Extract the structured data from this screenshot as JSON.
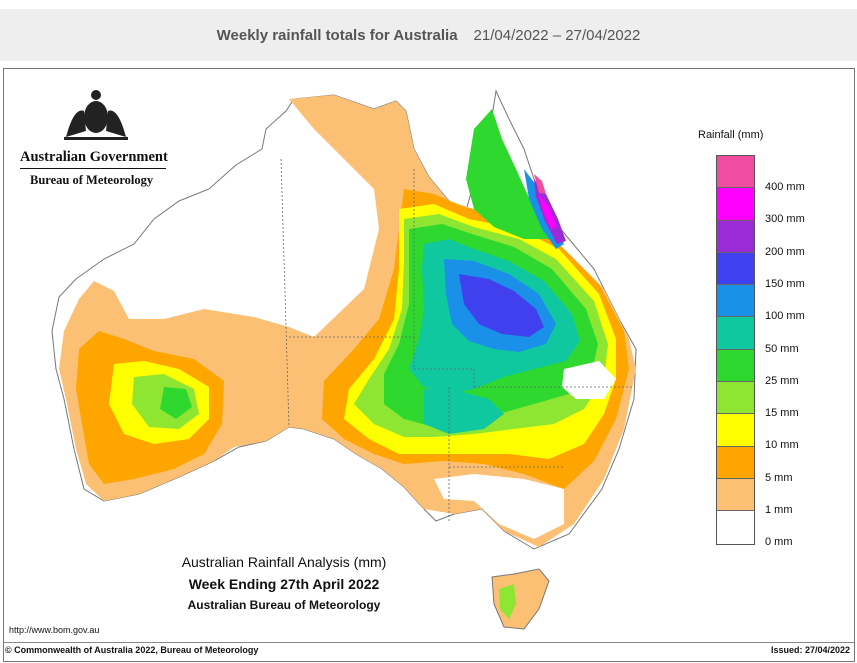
{
  "header": {
    "title": "Weekly rainfall totals for Australia",
    "date_range": "21/04/2022 – 27/04/2022"
  },
  "logo": {
    "name": "Australian Government",
    "bureau": "Bureau of Meteorology"
  },
  "legend": {
    "title": "Rainfall (mm)",
    "colors": [
      "#ee4da0",
      "#ff00ff",
      "#9b2bd6",
      "#4040ee",
      "#1a90e8",
      "#10c8a0",
      "#2ed82e",
      "#8ee632",
      "#ffff00",
      "#ffa500",
      "#fbc074",
      "#ffffff"
    ],
    "labels": [
      "400 mm",
      "300 mm",
      "200 mm",
      "150 mm",
      "100 mm",
      "50 mm",
      "25 mm",
      "15 mm",
      "10 mm",
      "5 mm",
      "1 mm",
      "0 mm"
    ]
  },
  "analysis": {
    "line1": "Australian Rainfall Analysis (mm)",
    "line2": "Week Ending 27th April 2022",
    "line3": "Australian Bureau of Meteorology"
  },
  "footer": {
    "url": "http://www.bom.gov.au",
    "copyright": "© Commonwealth of Australia 2022, Bureau of Meteorology",
    "issued": "Issued: 27/04/2022"
  }
}
